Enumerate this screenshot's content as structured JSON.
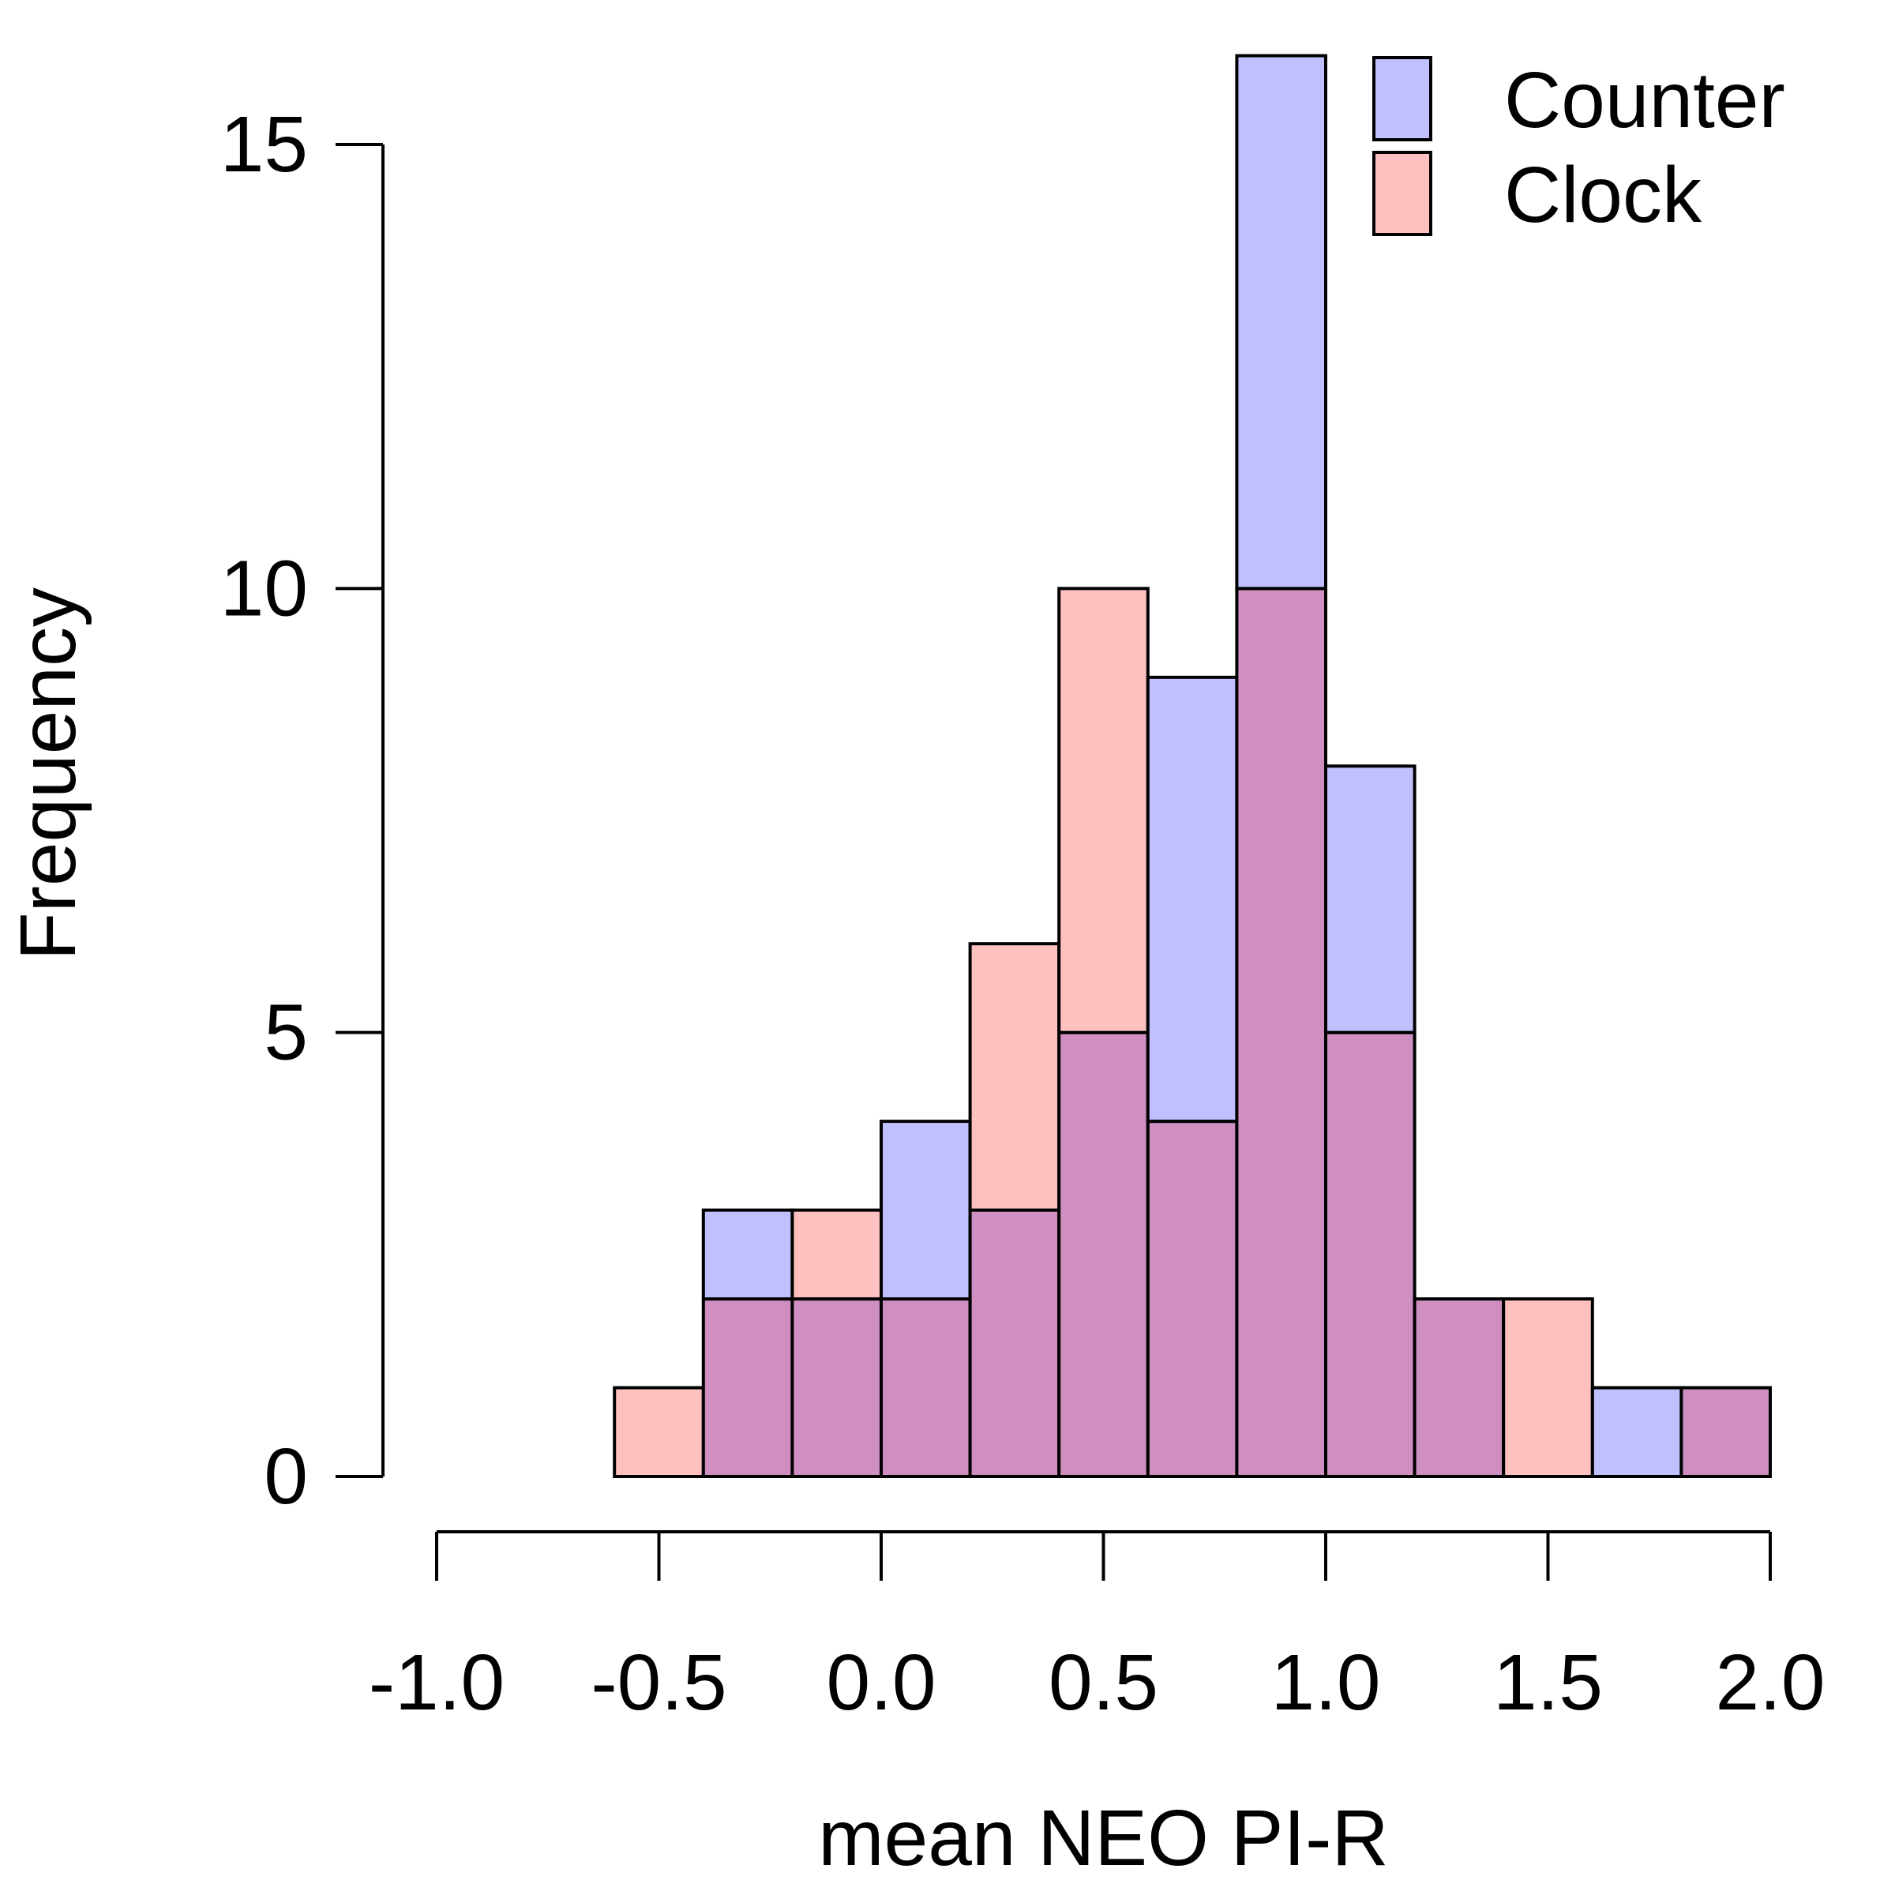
{
  "chart_data": {
    "type": "bar",
    "subtype": "overlaid-histogram",
    "xlabel": "mean NEO PI-R",
    "ylabel": "Frequency",
    "xlim": [
      -1.0,
      2.0
    ],
    "ylim": [
      0,
      16
    ],
    "x_ticks": [
      -1.0,
      -0.5,
      0.0,
      0.5,
      1.0,
      1.5,
      2.0
    ],
    "x_tick_labels": [
      "-1.0",
      "-0.5",
      "0.0",
      "0.5",
      "1.0",
      "1.5",
      "2.0"
    ],
    "y_ticks": [
      0,
      5,
      10,
      15
    ],
    "y_tick_labels": [
      "0",
      "5",
      "10",
      "15"
    ],
    "bin_edges": [
      -0.6,
      -0.4,
      -0.2,
      0.0,
      0.2,
      0.4,
      0.6,
      0.8,
      1.0,
      1.2,
      1.4,
      1.6,
      1.8,
      2.0
    ],
    "series": [
      {
        "name": "Counter",
        "color": "#c0c0ff",
        "counts": [
          0,
          3,
          2,
          4,
          3,
          5,
          9,
          16,
          8,
          2,
          0,
          1,
          1
        ]
      },
      {
        "name": "Clock",
        "color": "#ffc0c0",
        "counts": [
          1,
          2,
          3,
          2,
          6,
          10,
          4,
          10,
          5,
          2,
          2,
          0,
          1
        ]
      }
    ],
    "overlap_color": "#cf8fc0",
    "legend": {
      "position": "top-right",
      "entries": [
        "Counter",
        "Clock"
      ]
    },
    "grid": false
  }
}
